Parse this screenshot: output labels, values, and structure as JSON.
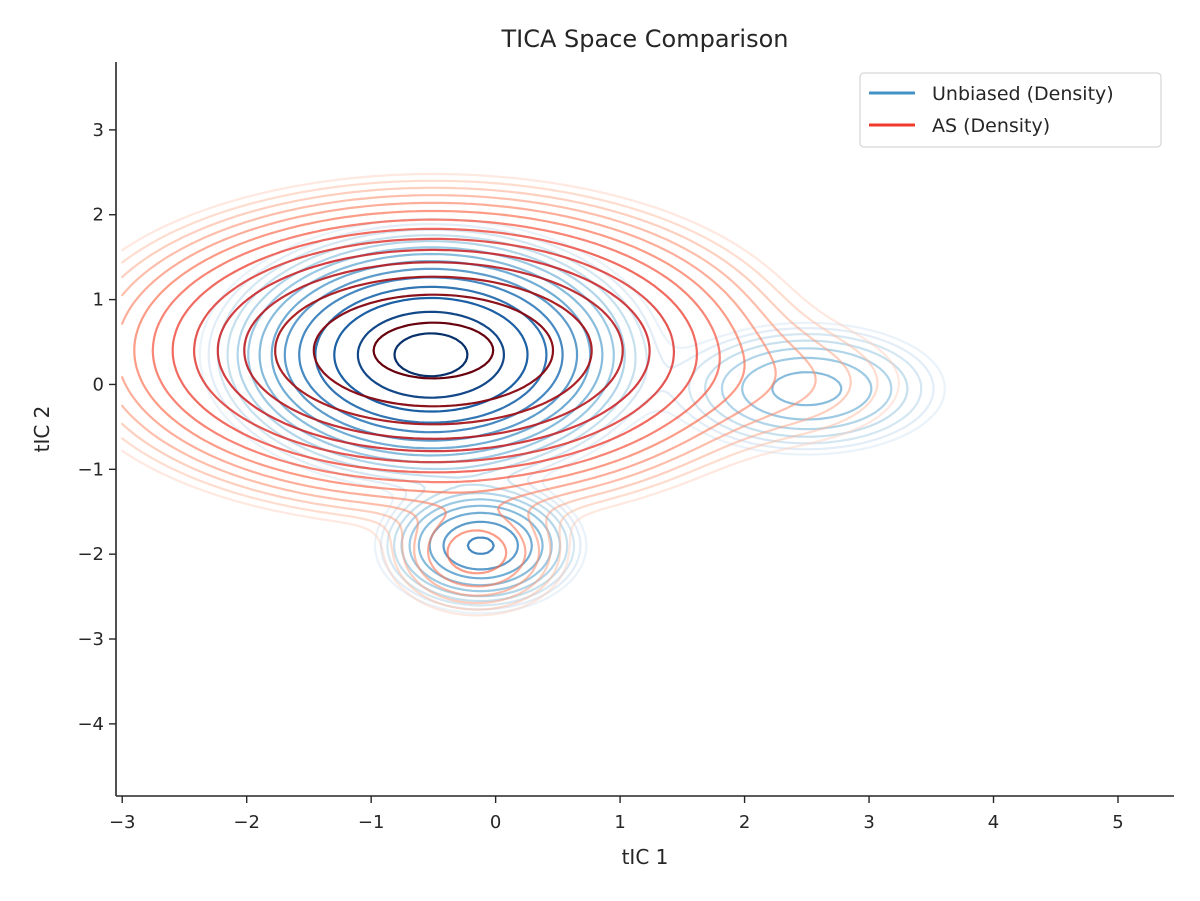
{
  "chart_data": {
    "type": "contour",
    "title": "TICA Space Comparison",
    "xlabel": "tIC 1",
    "ylabel": "tIC 2",
    "xlim": [
      -3.05,
      5.45
    ],
    "ylim": [
      -4.85,
      3.8
    ],
    "xticks": [
      -3,
      -2,
      -1,
      0,
      1,
      2,
      3,
      4,
      5
    ],
    "yticks": [
      -4,
      -3,
      -2,
      -1,
      0,
      1,
      2,
      3
    ],
    "xtick_labels": [
      "−3",
      "−2",
      "−1",
      "0",
      "1",
      "2",
      "3",
      "4",
      "5"
    ],
    "ytick_labels": [
      "−4",
      "−3",
      "−2",
      "−1",
      "0",
      "1",
      "2",
      "3"
    ],
    "grid": false,
    "legend_position": "top-right",
    "series": [
      {
        "name": "Unbiased (Density)",
        "color": "#4292c6",
        "colormap": "Blues",
        "components": [
          {
            "center": [
              -0.52,
              0.35
            ],
            "sigma": [
              0.58,
              0.5
            ],
            "weight": 1.0
          },
          {
            "center": [
              -0.12,
              -1.9
            ],
            "sigma": [
              0.32,
              0.3
            ],
            "weight": 0.2
          },
          {
            "center": [
              2.5,
              -0.05
            ],
            "sigma": [
              0.5,
              0.35
            ],
            "weight": 0.07
          }
        ]
      },
      {
        "name": "AS (Density)",
        "color": "#ef3b2c",
        "colormap": "Reds",
        "components": [
          {
            "center": [
              -0.5,
              0.4
            ],
            "sigma": [
              0.95,
              0.65
            ],
            "weight": 1.0
          },
          {
            "center": [
              -0.15,
              -2.0
            ],
            "sigma": [
              0.35,
              0.35
            ],
            "weight": 0.05
          },
          {
            "center": [
              2.4,
              0.0
            ],
            "sigma": [
              0.6,
              0.45
            ],
            "weight": 0.015
          }
        ]
      }
    ]
  }
}
